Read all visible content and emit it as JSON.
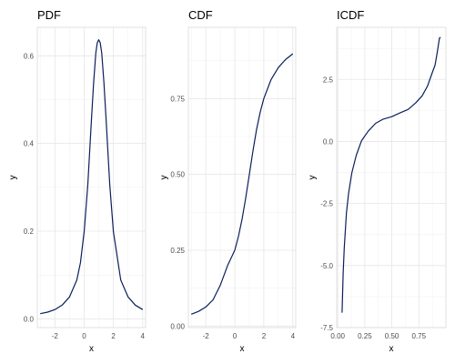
{
  "colors": {
    "line": "#0b1f5c",
    "grid": "#e6e6e6",
    "background": "#ffffff"
  },
  "chart_data": [
    {
      "type": "line",
      "title": "PDF",
      "xlabel": "x",
      "ylabel": "y",
      "xlim": [
        -3.2,
        4.2
      ],
      "ylim": [
        -0.02,
        0.665
      ],
      "xticks": [
        -2,
        0,
        2,
        4
      ],
      "xtick_labels": [
        "-2",
        "0",
        "2",
        "4"
      ],
      "yticks": [
        0.0,
        0.2,
        0.4,
        0.6
      ],
      "ytick_labels": [
        "0.0",
        "0.2",
        "0.4",
        "0.6"
      ],
      "grid": true,
      "series": [
        {
          "x": [
            -3.0,
            -2.5,
            -2.0,
            -1.5,
            -1.0,
            -0.5,
            -0.25,
            0.0,
            0.25,
            0.5,
            0.65,
            0.8,
            0.9,
            1.0,
            1.1,
            1.2,
            1.35,
            1.5,
            1.75,
            2.0,
            2.5,
            3.0,
            3.5,
            4.0
          ],
          "y": [
            0.0117,
            0.0153,
            0.0212,
            0.0312,
            0.05,
            0.0884,
            0.1279,
            0.1989,
            0.3064,
            0.4547,
            0.5389,
            0.6063,
            0.63,
            0.6366,
            0.63,
            0.6063,
            0.5389,
            0.4547,
            0.3064,
            0.1989,
            0.0884,
            0.05,
            0.0312,
            0.0212
          ]
        }
      ]
    },
    {
      "type": "line",
      "title": "CDF",
      "xlabel": "x",
      "ylabel": "y",
      "xlim": [
        -3.2,
        4.2
      ],
      "ylim": [
        -0.005,
        0.985
      ],
      "xticks": [
        -2,
        0,
        2,
        4
      ],
      "xtick_labels": [
        "-2",
        "0",
        "2",
        "4"
      ],
      "yticks": [
        0.0,
        0.25,
        0.5,
        0.75
      ],
      "ytick_labels": [
        "0.00",
        "0.25",
        "0.50",
        "0.75"
      ],
      "grid": true,
      "series": [
        {
          "x": [
            -3.0,
            -2.5,
            -2.0,
            -1.5,
            -1.0,
            -0.5,
            0.0,
            0.25,
            0.5,
            0.75,
            1.0,
            1.25,
            1.5,
            1.75,
            2.0,
            2.5,
            3.0,
            3.5,
            4.0
          ],
          "y": [
            0.039,
            0.0484,
            0.0627,
            0.0866,
            0.1348,
            0.1996,
            0.25,
            0.2952,
            0.3524,
            0.422,
            0.5,
            0.578,
            0.6476,
            0.7048,
            0.75,
            0.8128,
            0.8524,
            0.8789,
            0.8976
          ]
        }
      ]
    },
    {
      "type": "line",
      "title": "ICDF",
      "xlabel": "x",
      "ylabel": "y",
      "xlim": [
        -0.01,
        1.0
      ],
      "ylim": [
        -7.5,
        4.6
      ],
      "xticks": [
        0.0,
        0.25,
        0.5,
        0.75
      ],
      "xtick_labels": [
        "0.00",
        "0.25",
        "0.50",
        "0.75"
      ],
      "yticks": [
        -7.5,
        -5.0,
        -2.5,
        0.0,
        2.5
      ],
      "ytick_labels": [
        "-7.5",
        "-5.0",
        "-2.5",
        "0.0",
        "2.5"
      ],
      "grid": true,
      "series": [
        {
          "x": [
            0.04,
            0.05,
            0.06,
            0.08,
            0.1,
            0.13,
            0.17,
            0.22,
            0.28,
            0.35,
            0.42,
            0.5,
            0.58,
            0.65,
            0.72,
            0.78,
            0.83,
            0.87,
            0.9,
            0.92,
            0.94,
            0.95
          ],
          "y": [
            -6.9,
            -5.31,
            -4.29,
            -2.88,
            -2.08,
            -1.27,
            -0.57,
            0.03,
            0.41,
            0.73,
            0.9,
            1.0,
            1.16,
            1.29,
            1.55,
            1.84,
            2.23,
            2.73,
            3.08,
            3.59,
            4.16,
            4.2
          ]
        }
      ]
    }
  ]
}
